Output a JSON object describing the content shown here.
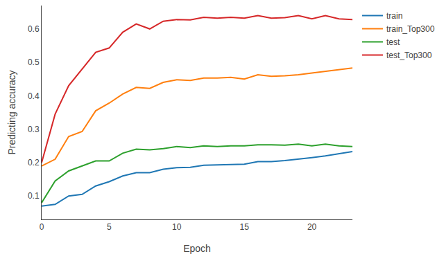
{
  "chart_data": {
    "type": "line",
    "x_label": "Epoch",
    "y_label": "Predicting accuracy",
    "x": [
      0,
      1,
      2,
      3,
      4,
      5,
      6,
      7,
      8,
      9,
      10,
      11,
      12,
      13,
      14,
      15,
      16,
      17,
      18,
      19,
      20,
      21,
      22,
      23
    ],
    "series": [
      {
        "name": "train",
        "color": "#1f77b4",
        "values": [
          0.07,
          0.075,
          0.1,
          0.105,
          0.13,
          0.143,
          0.16,
          0.17,
          0.17,
          0.18,
          0.185,
          0.186,
          0.192,
          0.193,
          0.194,
          0.195,
          0.203,
          0.203,
          0.206,
          0.21,
          0.215,
          0.22,
          0.227,
          0.233
        ]
      },
      {
        "name": "train_Top300",
        "color": "#ff7f0e",
        "values": [
          0.19,
          0.21,
          0.278,
          0.293,
          0.355,
          0.378,
          0.405,
          0.425,
          0.422,
          0.44,
          0.448,
          0.446,
          0.453,
          0.453,
          0.455,
          0.45,
          0.463,
          0.458,
          0.46,
          0.463,
          0.468,
          0.473,
          0.479,
          0.483
        ]
      },
      {
        "name": "test",
        "color": "#2ca02c",
        "values": [
          0.08,
          0.145,
          0.175,
          0.19,
          0.205,
          0.205,
          0.228,
          0.24,
          0.238,
          0.242,
          0.248,
          0.245,
          0.25,
          0.248,
          0.25,
          0.25,
          0.253,
          0.253,
          0.252,
          0.255,
          0.25,
          0.255,
          0.25,
          0.248
        ]
      },
      {
        "name": "test_Top300",
        "color": "#d62728",
        "values": [
          0.2,
          0.345,
          0.43,
          0.48,
          0.53,
          0.543,
          0.59,
          0.615,
          0.6,
          0.623,
          0.628,
          0.627,
          0.635,
          0.632,
          0.635,
          0.632,
          0.64,
          0.632,
          0.634,
          0.64,
          0.63,
          0.64,
          0.63,
          0.628
        ]
      }
    ],
    "xlim": [
      0,
      23
    ],
    "xticks": [
      0,
      5,
      10,
      15,
      20
    ],
    "ylim": [
      0.03,
      0.67
    ],
    "yticks": [
      0.1,
      0.2,
      0.3,
      0.4,
      0.5,
      0.6
    ],
    "grid": false,
    "legend": "top right"
  }
}
